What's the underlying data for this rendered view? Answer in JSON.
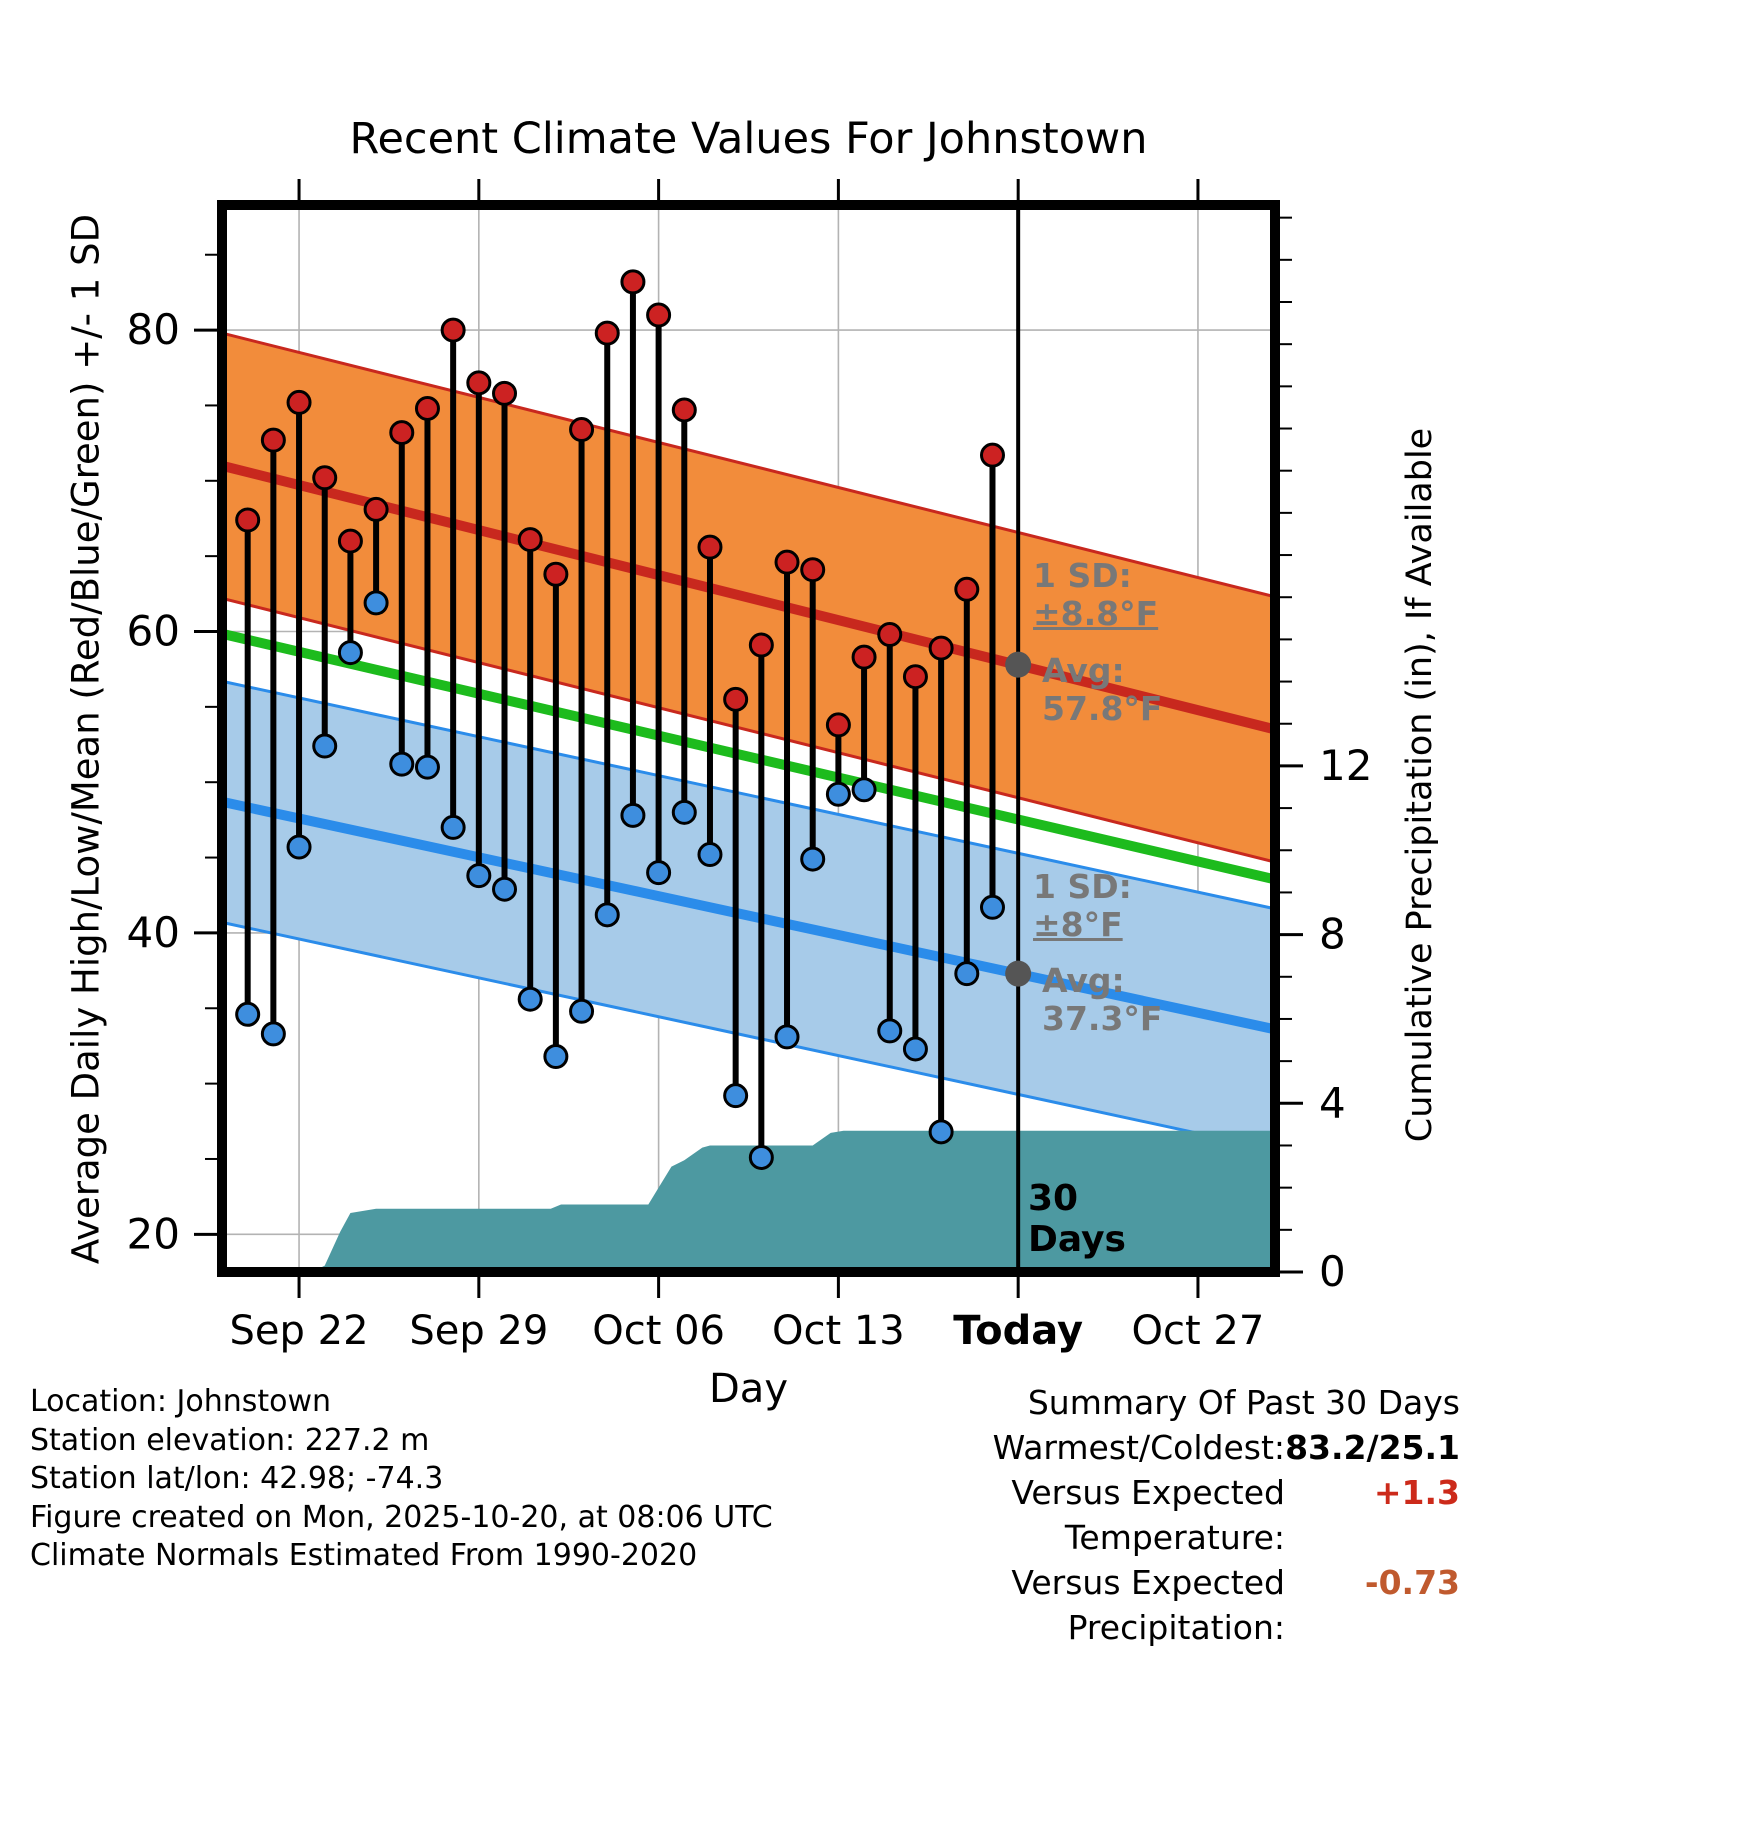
{
  "title": "Recent Climate Values For Johnstown",
  "axes": {
    "left_label": "Average Daily High/Low/Mean (Red/Blue/Green) +/- 1 SD",
    "right_label": "Cumulative Precipitation (in), If Available",
    "x_label": "Day"
  },
  "annotations": {
    "high_sd_label": "1 SD:",
    "high_sd_value": "±8.8°F",
    "high_avg_label": "Avg:",
    "high_avg_value": "57.8°F",
    "low_sd_label": "1 SD:",
    "low_sd_value": "±8°F",
    "low_avg_label": "Avg:",
    "low_avg_value": "37.3°F",
    "window_line1": "30",
    "window_line2": "Days"
  },
  "footer": {
    "lines": [
      "Location: Johnstown",
      "Station elevation: 227.2 m",
      "Station lat/lon: 42.98; -74.3",
      "Figure created on Mon, 2025-10-20, at 08:06 UTC",
      "Climate Normals Estimated From 1990-2020"
    ]
  },
  "summary": {
    "title": "Summary Of Past 30 Days",
    "rows": [
      {
        "label": "Warmest/Coldest:",
        "value": "83.2/25.1",
        "color": "#000000"
      },
      {
        "label": "Versus Expected Temperature:",
        "value": "+1.3",
        "color": "#cc2a1a"
      },
      {
        "label": "Versus Expected Precipitation:",
        "value": "-0.73",
        "color": "#c05a2e"
      }
    ]
  },
  "chart_data": {
    "type": "line",
    "title": "Recent Climate Values For Johnstown",
    "xlabel": "Day",
    "ylabel_left": "Average Daily High/Low/Mean (Red/Blue/Green) +/- 1 SD",
    "ylabel_right": "Cumulative Precipitation (in), If Available",
    "x_axis": {
      "min": 0,
      "max": 41,
      "unit": "days since Sep 19"
    },
    "x_ticks": [
      {
        "day": 3,
        "label": "Sep 22",
        "bold": false
      },
      {
        "day": 10,
        "label": "Sep 29",
        "bold": false
      },
      {
        "day": 17,
        "label": "Oct 06",
        "bold": false
      },
      {
        "day": 24,
        "label": "Oct 13",
        "bold": false
      },
      {
        "day": 31,
        "label": "Today",
        "bold": true
      },
      {
        "day": 38,
        "label": "Oct 27",
        "bold": false
      }
    ],
    "temp_axis": {
      "min": 17.5,
      "max": 88.3,
      "major_ticks": [
        20,
        40,
        60,
        80
      ],
      "minor_step": 5
    },
    "precip_axis": {
      "min": 0,
      "max": 25.3,
      "major_ticks": [
        0,
        4,
        8,
        12
      ],
      "minor_step": 1
    },
    "dates": [
      "Sep 20",
      "Sep 21",
      "Sep 22",
      "Sep 23",
      "Sep 24",
      "Sep 25",
      "Sep 26",
      "Sep 27",
      "Sep 28",
      "Sep 29",
      "Sep 30",
      "Oct 01",
      "Oct 02",
      "Oct 03",
      "Oct 04",
      "Oct 05",
      "Oct 06",
      "Oct 07",
      "Oct 08",
      "Oct 09",
      "Oct 10",
      "Oct 11",
      "Oct 12",
      "Oct 13",
      "Oct 14",
      "Oct 15",
      "Oct 16",
      "Oct 17",
      "Oct 18",
      "Oct 19"
    ],
    "highs": [
      67.4,
      72.7,
      75.2,
      70.2,
      66.0,
      68.1,
      73.2,
      74.8,
      80.0,
      76.5,
      75.8,
      66.1,
      63.8,
      73.4,
      79.8,
      83.2,
      81.0,
      74.7,
      65.6,
      55.5,
      59.1,
      64.6,
      64.1,
      53.8,
      58.3,
      59.8,
      57.0,
      58.9,
      62.8,
      71.7
    ],
    "lows": [
      34.6,
      33.3,
      45.7,
      52.4,
      58.6,
      61.9,
      51.2,
      51.0,
      47.0,
      43.8,
      42.9,
      35.6,
      31.8,
      34.8,
      41.2,
      47.8,
      44.0,
      48.0,
      45.2,
      29.2,
      25.1,
      33.1,
      44.9,
      49.2,
      49.5,
      33.5,
      32.3,
      26.8,
      37.3,
      41.7
    ],
    "normals": {
      "x": [
        0,
        41
      ],
      "high_mean": [
        71.0,
        53.5
      ],
      "high_sd": 8.8,
      "low_mean": [
        48.7,
        33.6
      ],
      "low_sd": 8.0,
      "today": {
        "day": 31,
        "high_avg": 57.8,
        "low_avg": 37.3
      }
    },
    "precip_cumulative": [
      [
        0,
        0
      ],
      [
        3.5,
        0
      ],
      [
        4,
        0.15
      ],
      [
        4.6,
        0.95
      ],
      [
        5,
        1.4
      ],
      [
        6,
        1.5
      ],
      [
        12.8,
        1.5
      ],
      [
        13.2,
        1.6
      ],
      [
        16.6,
        1.6
      ],
      [
        17,
        2.0
      ],
      [
        17.5,
        2.5
      ],
      [
        18,
        2.65
      ],
      [
        18.7,
        2.95
      ],
      [
        19,
        3.0
      ],
      [
        23,
        3.0
      ],
      [
        23.7,
        3.3
      ],
      [
        24.2,
        3.35
      ],
      [
        41,
        3.35
      ]
    ],
    "summary_stats": {
      "warmest": 83.2,
      "coldest": 25.1,
      "vs_expected_temp": 1.3,
      "vs_expected_precip": -0.73
    },
    "colors": {
      "grid": "#b3b3b3",
      "high_band_fill": "#F28C3B",
      "high_line": "#C8281E",
      "high_dot": "#CC2222",
      "low_band_fill": "#A7CBE9",
      "low_line": "#2B8CEA",
      "low_dot": "#3E8EDE",
      "mean_line": "#1DBB1D",
      "precip_fill": "#4D99A1",
      "stem": "#000000",
      "today_line": "#000000",
      "avg_marker": "#555555"
    }
  }
}
